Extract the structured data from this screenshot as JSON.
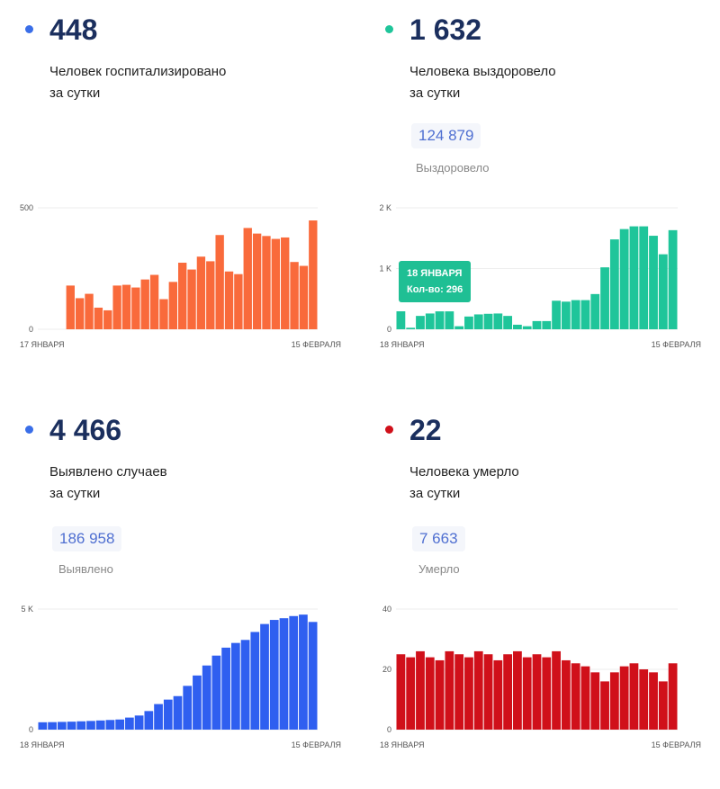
{
  "panels": [
    {
      "value": "448",
      "label1": "Человек госпитализировано",
      "label2": "за сутки",
      "color": "#3a6ee8"
    },
    {
      "value": "1 632",
      "label1": "Человека выздоровело",
      "label2": "за сутки",
      "total": "124 879",
      "total_label": "Выздоровело",
      "color": "#1fc59a"
    },
    {
      "value": "4 466",
      "label1": "Выявлено случаев",
      "label2": "за сутки",
      "total": "186 958",
      "total_label": "Выявлено",
      "color": "#3a6ee8"
    },
    {
      "value": "22",
      "label1": "Человека умерло",
      "label2": "за сутки",
      "total": "7 663",
      "total_label": "Умерло",
      "color": "#d0101a"
    }
  ],
  "tooltip": {
    "date": "18 ЯНВАРЯ",
    "count": "Кол-во: 296"
  },
  "chart_data": [
    {
      "type": "bar",
      "title": "Госпитализировано",
      "color": "#f96a3b",
      "ylim": [
        0,
        500
      ],
      "yticks": [
        "0",
        "500"
      ],
      "ytick_values": [
        0,
        500
      ],
      "x_start": "17 ЯНВАРЯ",
      "x_end": "15 ФЕВРАЛЯ",
      "values": [
        null,
        null,
        null,
        180,
        128,
        146,
        89,
        78,
        180,
        183,
        172,
        205,
        224,
        124,
        195,
        274,
        246,
        299,
        280,
        388,
        238,
        227,
        417,
        394,
        384,
        372,
        378,
        277,
        261,
        448
      ]
    },
    {
      "type": "bar",
      "title": "Выздоровело",
      "color": "#1fc59a",
      "ylim": [
        0,
        2000
      ],
      "yticks": [
        "0",
        "1 K",
        "2 K"
      ],
      "ytick_values": [
        0,
        1000,
        2000
      ],
      "x_start": "18 ЯНВАРЯ",
      "x_end": "15 ФЕВРАЛЯ",
      "values": [
        296,
        25,
        220,
        260,
        295,
        295,
        50,
        210,
        245,
        255,
        260,
        220,
        75,
        50,
        135,
        135,
        470,
        455,
        480,
        480,
        580,
        1020,
        1480,
        1650,
        1695,
        1695,
        1540,
        1235,
        1632
      ]
    },
    {
      "type": "bar",
      "title": "Выявлено",
      "color": "#2f5ff0",
      "ylim": [
        0,
        5000
      ],
      "yticks": [
        "0",
        "5 K"
      ],
      "ytick_values": [
        0,
        5000
      ],
      "x_start": "18 ЯНВАРЯ",
      "x_end": "15 ФЕВРАЛЯ",
      "values": [
        305,
        310,
        320,
        330,
        345,
        360,
        380,
        400,
        420,
        500,
        585,
        770,
        1060,
        1245,
        1390,
        1815,
        2245,
        2660,
        3070,
        3400,
        3595,
        3720,
        4050,
        4380,
        4550,
        4620,
        4710,
        4770,
        4466
      ]
    },
    {
      "type": "bar",
      "title": "Умерло",
      "color": "#d0101a",
      "ylim": [
        0,
        40
      ],
      "yticks": [
        "0",
        "20",
        "40"
      ],
      "ytick_values": [
        0,
        20,
        40
      ],
      "x_start": "18 ЯНВАРЯ",
      "x_end": "15 ФЕВРАЛЯ",
      "values": [
        25,
        24,
        26,
        24,
        23,
        26,
        25,
        24,
        26,
        25,
        23,
        25,
        26,
        24,
        25,
        24,
        26,
        23,
        22,
        21,
        19,
        16,
        19,
        21,
        22,
        20,
        19,
        16,
        22
      ]
    }
  ]
}
